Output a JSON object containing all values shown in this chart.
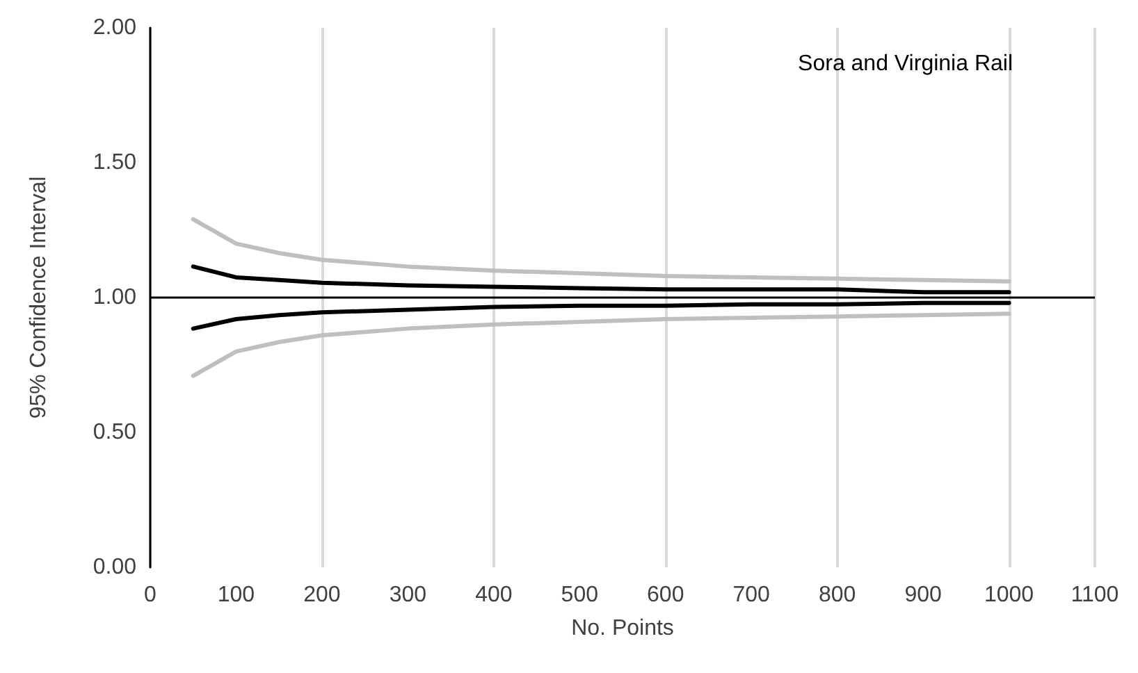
{
  "chart_data": {
    "type": "line",
    "xlabel": "No. Points",
    "ylabel": "95% Confidence Interval",
    "annotations": [
      "Sora and Virginia Rail"
    ],
    "x": [
      50,
      100,
      150,
      200,
      300,
      400,
      500,
      600,
      700,
      800,
      900,
      1000
    ],
    "series": [
      {
        "color": "#bfbfbf",
        "values": [
          1.29,
          1.2,
          1.165,
          1.14,
          1.115,
          1.1,
          1.09,
          1.08,
          1.075,
          1.07,
          1.065,
          1.06
        ]
      },
      {
        "color": "#000000",
        "values": [
          1.115,
          1.075,
          1.065,
          1.055,
          1.045,
          1.04,
          1.035,
          1.03,
          1.03,
          1.03,
          1.02,
          1.02
        ]
      },
      {
        "color": "#000000",
        "values": [
          0.885,
          0.92,
          0.935,
          0.945,
          0.955,
          0.965,
          0.97,
          0.97,
          0.975,
          0.975,
          0.98,
          0.98
        ]
      },
      {
        "color": "#bfbfbf",
        "values": [
          0.71,
          0.8,
          0.835,
          0.86,
          0.885,
          0.9,
          0.91,
          0.92,
          0.925,
          0.93,
          0.935,
          0.94
        ]
      }
    ],
    "xlim": [
      0,
      1100
    ],
    "xticks": [
      0,
      100,
      200,
      300,
      400,
      500,
      600,
      700,
      800,
      900,
      1000,
      1100
    ],
    "ylim": [
      0,
      2
    ],
    "yticks": [
      {
        "value": 0,
        "label": "0.00"
      },
      {
        "value": 0.5,
        "label": "0.50"
      },
      {
        "value": 1,
        "label": "1.00"
      },
      {
        "value": 1.5,
        "label": "1.50"
      },
      {
        "value": 2,
        "label": "2.00"
      }
    ],
    "ref_lines": [
      {
        "axis": "y",
        "value": 1,
        "color": "#000000"
      }
    ],
    "grid": "x",
    "marker": "none",
    "line_style": "solid"
  }
}
